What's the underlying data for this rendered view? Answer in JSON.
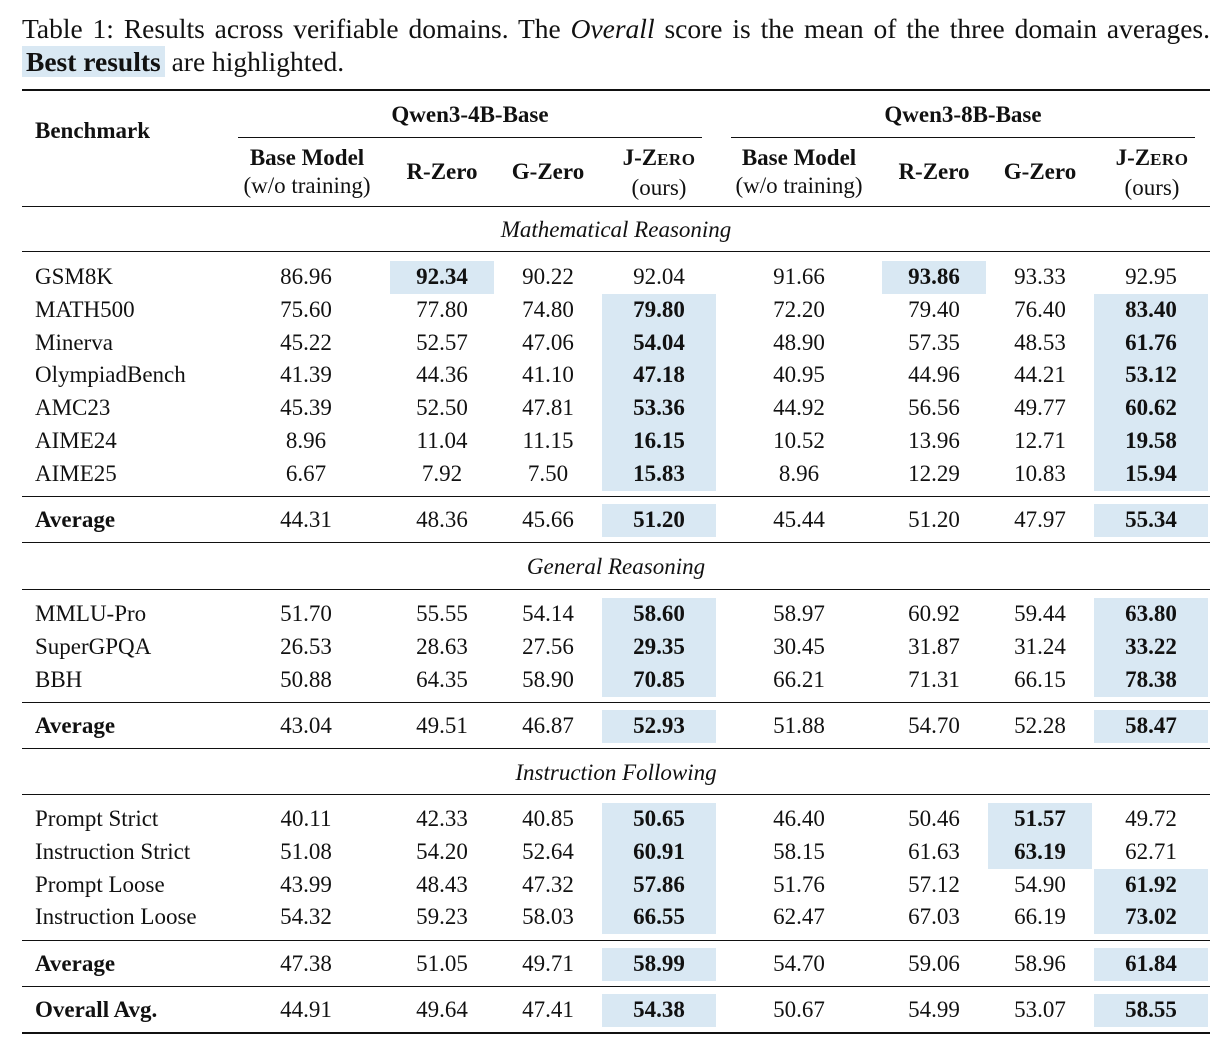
{
  "caption": {
    "part1": "Table 1: Results across verifiable domains. The ",
    "overall_word": "Overall",
    "part2": " score is the mean of the three domain averages. ",
    "best": "Best results",
    "part3": " are highlighted."
  },
  "header": {
    "benchmark": "Benchmark",
    "group_4b": "Qwen3-4B-Base",
    "group_8b": "Qwen3-8B-Base",
    "base_model": "Base Model",
    "wo_training": "(w/o training)",
    "rzero": "R-Zero",
    "gzero": "G-Zero",
    "jzero_j": "J-Z",
    "jzero_rest": "ERO",
    "ours": "(ours)"
  },
  "sections": [
    {
      "title": "Mathematical Reasoning",
      "rows": [
        {
          "name": "GSM8K",
          "v": [
            "86.96",
            "92.34",
            "90.22",
            "92.04",
            "91.66",
            "93.86",
            "93.33",
            "92.95"
          ],
          "best": [
            1,
            5
          ]
        },
        {
          "name": "MATH500",
          "v": [
            "75.60",
            "77.80",
            "74.80",
            "79.80",
            "72.20",
            "79.40",
            "76.40",
            "83.40"
          ],
          "best": [
            3,
            7
          ]
        },
        {
          "name": "Minerva",
          "v": [
            "45.22",
            "52.57",
            "47.06",
            "54.04",
            "48.90",
            "57.35",
            "48.53",
            "61.76"
          ],
          "best": [
            3,
            7
          ]
        },
        {
          "name": "OlympiadBench",
          "v": [
            "41.39",
            "44.36",
            "41.10",
            "47.18",
            "40.95",
            "44.96",
            "44.21",
            "53.12"
          ],
          "best": [
            3,
            7
          ]
        },
        {
          "name": "AMC23",
          "v": [
            "45.39",
            "52.50",
            "47.81",
            "53.36",
            "44.92",
            "56.56",
            "49.77",
            "60.62"
          ],
          "best": [
            3,
            7
          ]
        },
        {
          "name": "AIME24",
          "v": [
            "8.96",
            "11.04",
            "11.15",
            "16.15",
            "10.52",
            "13.96",
            "12.71",
            "19.58"
          ],
          "best": [
            3,
            7
          ]
        },
        {
          "name": "AIME25",
          "v": [
            "6.67",
            "7.92",
            "7.50",
            "15.83",
            "8.96",
            "12.29",
            "10.83",
            "15.94"
          ],
          "best": [
            3,
            7
          ]
        }
      ],
      "average": {
        "name": "Average",
        "v": [
          "44.31",
          "48.36",
          "45.66",
          "51.20",
          "45.44",
          "51.20",
          "47.97",
          "55.34"
        ],
        "best": [
          3,
          7
        ]
      }
    },
    {
      "title": "General Reasoning",
      "rows": [
        {
          "name": "MMLU-Pro",
          "v": [
            "51.70",
            "55.55",
            "54.14",
            "58.60",
            "58.97",
            "60.92",
            "59.44",
            "63.80"
          ],
          "best": [
            3,
            7
          ]
        },
        {
          "name": "SuperGPQA",
          "v": [
            "26.53",
            "28.63",
            "27.56",
            "29.35",
            "30.45",
            "31.87",
            "31.24",
            "33.22"
          ],
          "best": [
            3,
            7
          ]
        },
        {
          "name": "BBH",
          "v": [
            "50.88",
            "64.35",
            "58.90",
            "70.85",
            "66.21",
            "71.31",
            "66.15",
            "78.38"
          ],
          "best": [
            3,
            7
          ]
        }
      ],
      "average": {
        "name": "Average",
        "v": [
          "43.04",
          "49.51",
          "46.87",
          "52.93",
          "51.88",
          "54.70",
          "52.28",
          "58.47"
        ],
        "best": [
          3,
          7
        ]
      }
    },
    {
      "title": "Instruction Following",
      "rows": [
        {
          "name": "Prompt Strict",
          "v": [
            "40.11",
            "42.33",
            "40.85",
            "50.65",
            "46.40",
            "50.46",
            "51.57",
            "49.72"
          ],
          "best": [
            3,
            6
          ]
        },
        {
          "name": "Instruction Strict",
          "v": [
            "51.08",
            "54.20",
            "52.64",
            "60.91",
            "58.15",
            "61.63",
            "63.19",
            "62.71"
          ],
          "best": [
            3,
            6
          ]
        },
        {
          "name": "Prompt Loose",
          "v": [
            "43.99",
            "48.43",
            "47.32",
            "57.86",
            "51.76",
            "57.12",
            "54.90",
            "61.92"
          ],
          "best": [
            3,
            7
          ]
        },
        {
          "name": "Instruction Loose",
          "v": [
            "54.32",
            "59.23",
            "58.03",
            "66.55",
            "62.47",
            "67.03",
            "66.19",
            "73.02"
          ],
          "best": [
            3,
            7
          ]
        }
      ],
      "average": {
        "name": "Average",
        "v": [
          "47.38",
          "51.05",
          "49.71",
          "58.99",
          "54.70",
          "59.06",
          "58.96",
          "61.84"
        ],
        "best": [
          3,
          7
        ]
      }
    }
  ],
  "overall": {
    "name": "Overall Avg.",
    "v": [
      "44.91",
      "49.64",
      "47.41",
      "54.38",
      "50.67",
      "54.99",
      "53.07",
      "58.55"
    ],
    "best": [
      3,
      7
    ]
  }
}
